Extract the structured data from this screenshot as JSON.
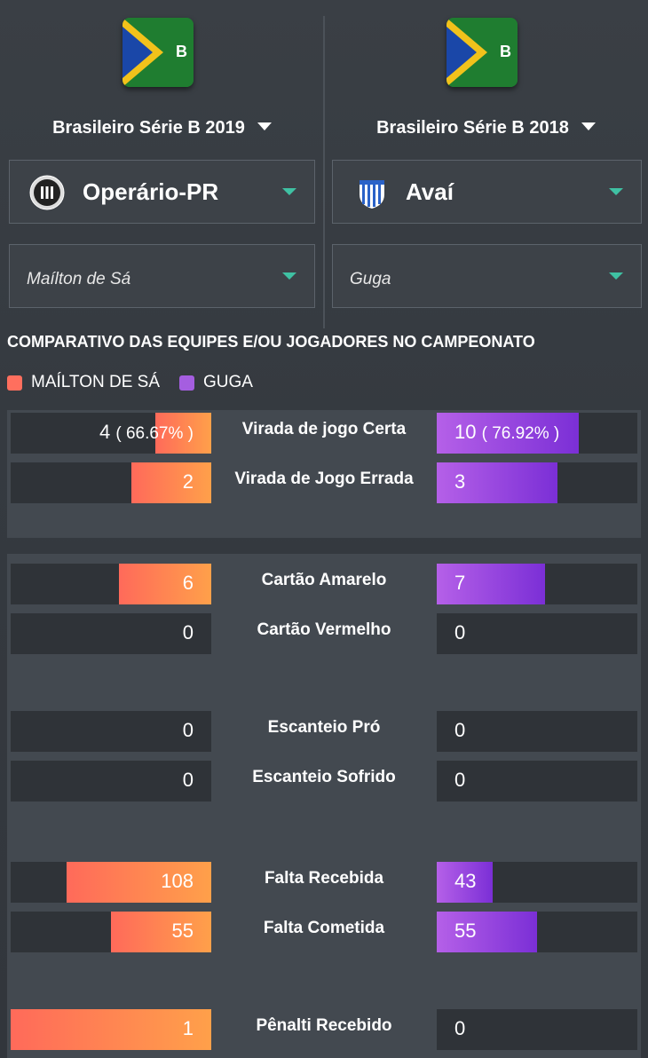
{
  "left": {
    "competition": "Brasileiro Série B 2019",
    "team": "Operário-PR",
    "player": "Maílton de Sá",
    "logo_letter": "B"
  },
  "right": {
    "competition": "Brasileiro Série B 2018",
    "team": "Avaí",
    "player": "Guga",
    "logo_letter": "B"
  },
  "section_title": "COMPARATIVO DAS EQUIPES E/OU JOGADORES NO CAMPEONATO",
  "legend": [
    {
      "name": "MAÍLTON DE SÁ",
      "color": "#ff6f5e"
    },
    {
      "name": "GUGA",
      "color": "#a55ee0"
    }
  ],
  "groups": [
    {
      "rows": [
        {
          "label": "Virada de jogo Certa",
          "left": "4",
          "left_pct": "( 66.67% )",
          "right": "10",
          "right_pct": "( 76.92% )",
          "left_frac": 0.28,
          "right_frac": 0.71
        },
        {
          "label": "Virada de Jogo Errada",
          "left": "2",
          "left_pct": "",
          "right": "3",
          "right_pct": "",
          "left_frac": 0.4,
          "right_frac": 0.6
        }
      ]
    },
    {
      "rows": [
        {
          "label": "Cartão Amarelo",
          "left": "6",
          "left_pct": "",
          "right": "7",
          "right_pct": "",
          "left_frac": 0.46,
          "right_frac": 0.54
        },
        {
          "label": "Cartão Vermelho",
          "left": "0",
          "left_pct": "",
          "right": "0",
          "right_pct": "",
          "left_frac": 0,
          "right_frac": 0
        }
      ]
    },
    {
      "rows": [
        {
          "label": "Escanteio Pró",
          "left": "0",
          "left_pct": "",
          "right": "0",
          "right_pct": "",
          "left_frac": 0,
          "right_frac": 0
        },
        {
          "label": "Escanteio Sofrido",
          "left": "0",
          "left_pct": "",
          "right": "0",
          "right_pct": "",
          "left_frac": 0,
          "right_frac": 0
        }
      ]
    },
    {
      "rows": [
        {
          "label": "Falta Recebida",
          "left": "108",
          "left_pct": "",
          "right": "43",
          "right_pct": "",
          "left_frac": 0.72,
          "right_frac": 0.28
        },
        {
          "label": "Falta Cometida",
          "left": "55",
          "left_pct": "",
          "right": "55",
          "right_pct": "",
          "left_frac": 0.5,
          "right_frac": 0.5
        }
      ]
    },
    {
      "rows": [
        {
          "label": "Pênalti Recebido",
          "left": "1",
          "left_pct": "",
          "right": "0",
          "right_pct": "",
          "left_frac": 1.0,
          "right_frac": 0
        }
      ]
    }
  ]
}
